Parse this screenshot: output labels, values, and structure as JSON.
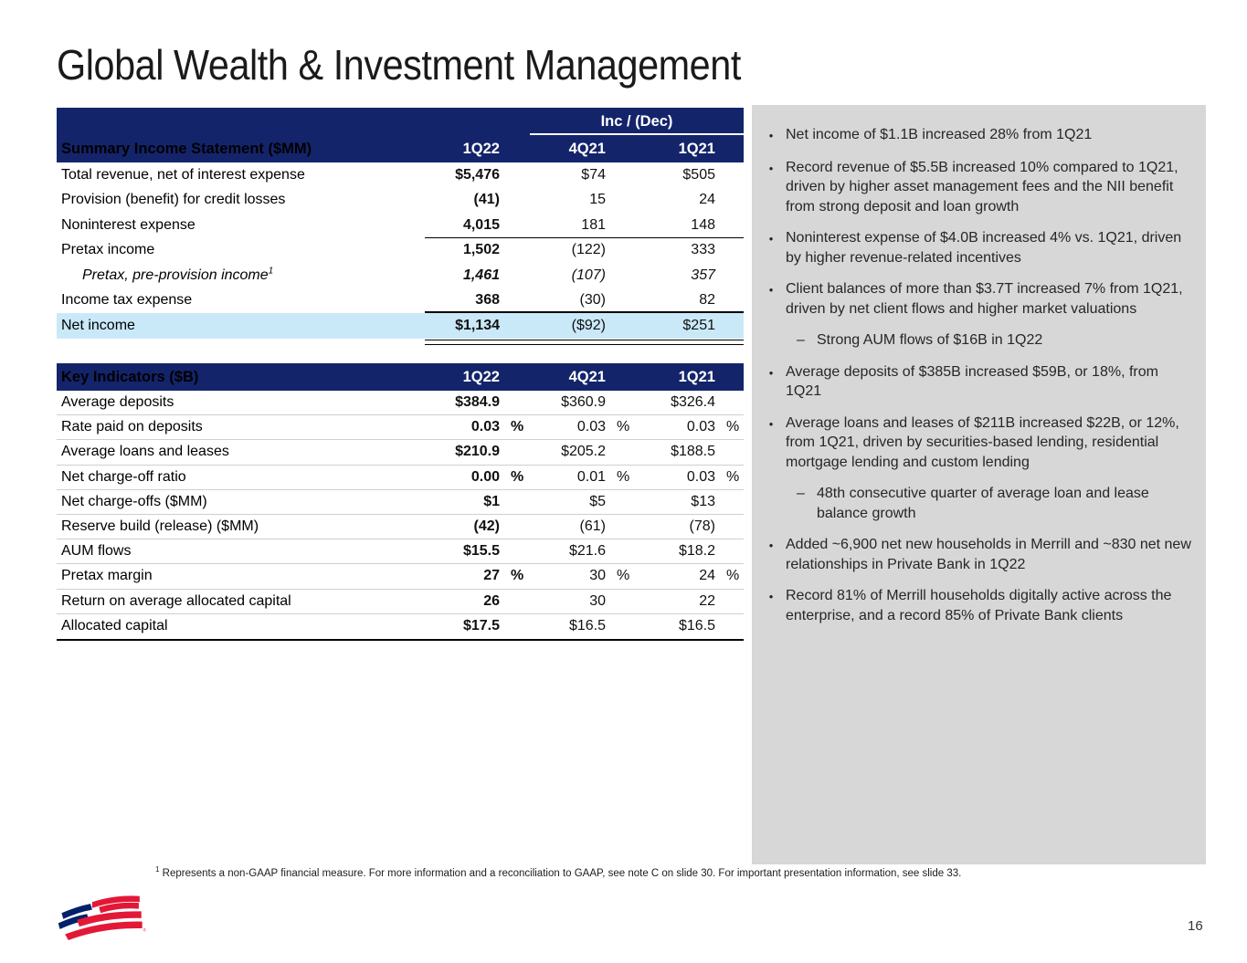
{
  "title": "Global Wealth & Investment Management",
  "colors": {
    "navy": "#14246B",
    "highlight_blue": "#C9E9F8",
    "panel_gray": "#D7D7D7",
    "brand_red": "#E31837",
    "brand_blue": "#012169"
  },
  "ui": {
    "percent": "%",
    "bullet": "•",
    "dash": "–"
  },
  "income_statement": {
    "span_header": "Inc / (Dec)",
    "title": "Summary Income Statement ($MM)",
    "columns": [
      "1Q22",
      "4Q21",
      "1Q21"
    ],
    "rows": [
      {
        "label": "Total revenue, net of interest expense",
        "values": [
          "$5,476",
          "$74",
          "$505"
        ]
      },
      {
        "label": "Provision (benefit) for credit losses",
        "values": [
          "(41)",
          "15",
          "24"
        ]
      },
      {
        "label": "Noninterest expense",
        "values": [
          "4,015",
          "181",
          "148"
        ]
      },
      {
        "label": "Pretax income",
        "values": [
          "1,502",
          "(122)",
          "333"
        ],
        "rule_above": true
      },
      {
        "label": "Pretax, pre-provision income",
        "sup": "1",
        "values": [
          "1,461",
          "(107)",
          "357"
        ],
        "italic": true,
        "indent": true
      },
      {
        "label": "Income tax expense",
        "values": [
          "368",
          "(30)",
          "82"
        ]
      },
      {
        "label": "Net income",
        "values": [
          "$1,134",
          "($92)",
          "$251"
        ],
        "highlight": true
      }
    ]
  },
  "key_indicators": {
    "title": "Key Indicators ($B)",
    "columns": [
      "1Q22",
      "4Q21",
      "1Q21"
    ],
    "rows": [
      {
        "label": "Average deposits",
        "values": [
          "$384.9",
          "$360.9",
          "$326.4"
        ]
      },
      {
        "label": "Rate paid on deposits",
        "values": [
          "0.03",
          "0.03",
          "0.03"
        ],
        "pct": true
      },
      {
        "label": "Average loans and leases",
        "values": [
          "$210.9",
          "$205.2",
          "$188.5"
        ]
      },
      {
        "label": "Net charge-off ratio",
        "values": [
          "0.00",
          "0.01",
          "0.03"
        ],
        "pct": true
      },
      {
        "label": "Net charge-offs ($MM)",
        "values": [
          "$1",
          "$5",
          "$13"
        ]
      },
      {
        "label": "Reserve build (release) ($MM)",
        "values": [
          "(42)",
          "(61)",
          "(78)"
        ]
      },
      {
        "label": "AUM flows",
        "values": [
          "$15.5",
          "$21.6",
          "$18.2"
        ]
      },
      {
        "label": "Pretax margin",
        "values": [
          "27",
          "30",
          "24"
        ],
        "pct": true
      },
      {
        "label": "Return on average allocated capital",
        "values": [
          "26",
          "30",
          "22"
        ]
      },
      {
        "label": "Allocated capital",
        "values": [
          "$17.5",
          "$16.5",
          "$16.5"
        ]
      }
    ]
  },
  "highlights": [
    {
      "text": "Net income of $1.1B increased 28% from 1Q21"
    },
    {
      "text": "Record revenue of $5.5B increased 10% compared to 1Q21, driven by higher asset management fees and the NII benefit from strong deposit and loan growth"
    },
    {
      "text": "Noninterest expense of $4.0B increased 4% vs. 1Q21, driven by higher revenue-related incentives"
    },
    {
      "text": "Client balances of more than $3.7T increased 7% from 1Q21, driven by net client flows and higher market valuations",
      "sub": [
        "Strong AUM flows of $16B in 1Q22"
      ]
    },
    {
      "text": "Average deposits of $385B increased $59B, or 18%, from 1Q21"
    },
    {
      "text": "Average loans and leases of $211B increased $22B, or 12%, from 1Q21, driven by securities-based lending, residential mortgage lending and custom lending",
      "sub": [
        "48th consecutive quarter of average loan and lease balance growth"
      ]
    },
    {
      "text": "Added ~6,900 net new households in Merrill and ~830 net new relationships in Private Bank in 1Q22"
    },
    {
      "text": "Record 81% of Merrill households digitally active across the enterprise, and a record 85% of Private Bank clients"
    }
  ],
  "footnote": {
    "sup": "1",
    "text": "Represents a non-GAAP financial measure. For more information and a reconciliation to GAAP, see note C on slide 30. For important presentation information, see slide 33."
  },
  "page_number": "16"
}
